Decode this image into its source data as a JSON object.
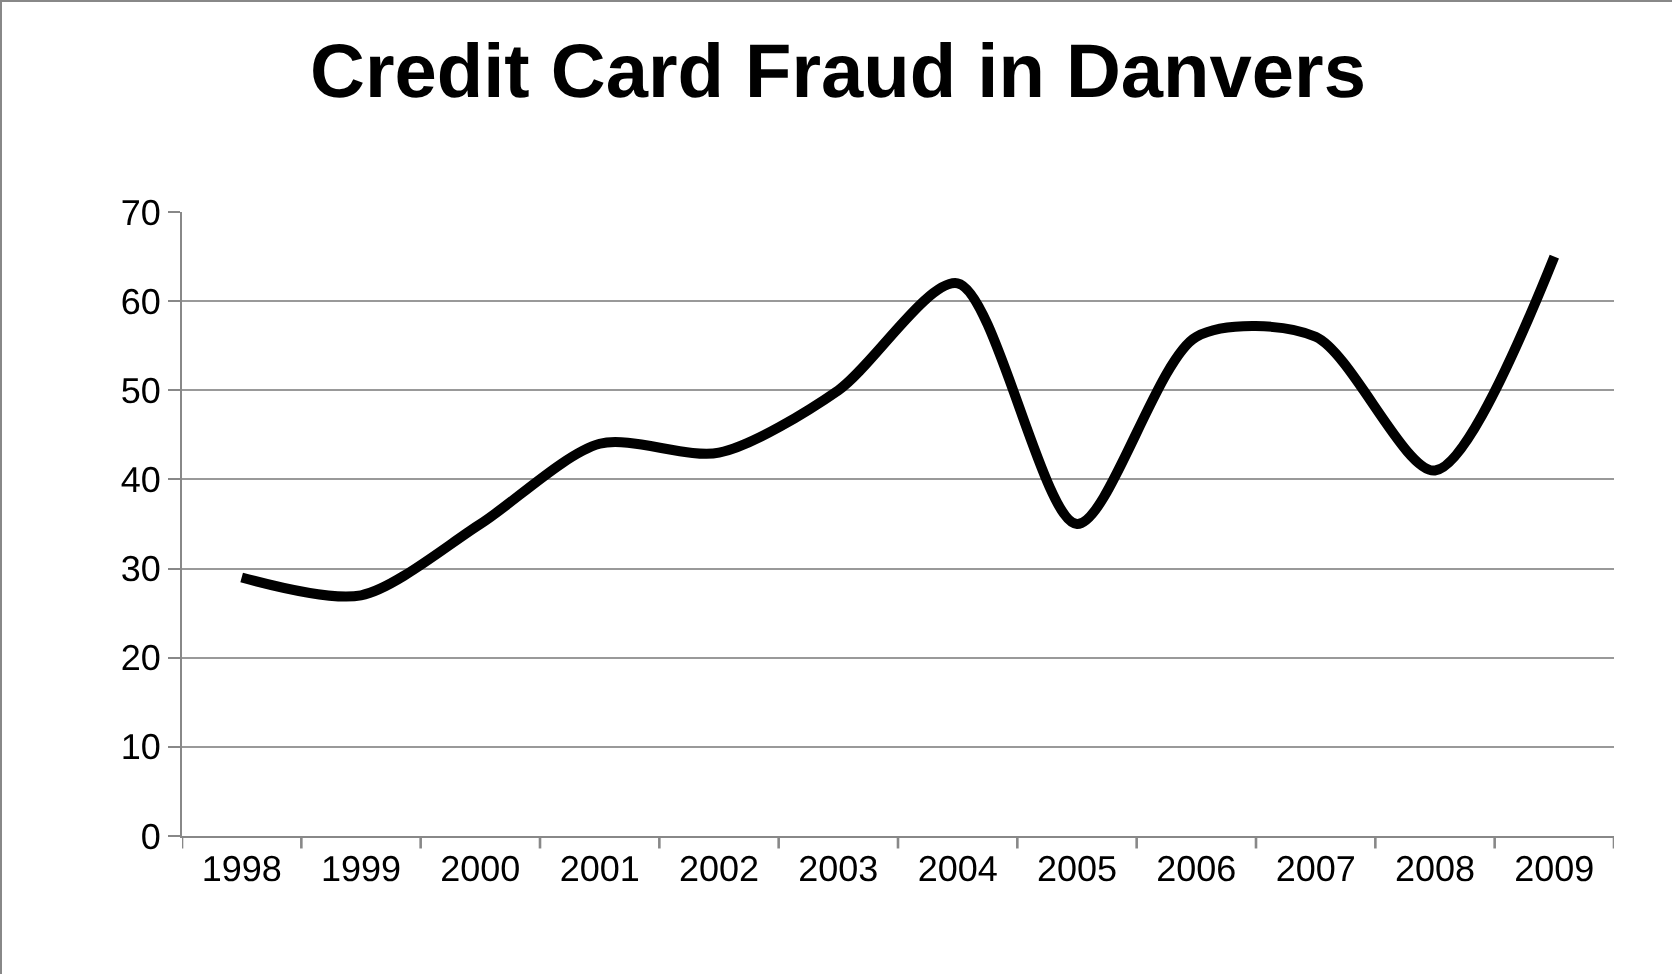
{
  "chart_data": {
    "type": "line",
    "title": "Credit Card Fraud in Danvers",
    "categories": [
      "1998",
      "1999",
      "2000",
      "2001",
      "2002",
      "2003",
      "2004",
      "2005",
      "2006",
      "2007",
      "2008",
      "2009"
    ],
    "series": [
      {
        "color": "#000000",
        "values": [
          29,
          27,
          35,
          44,
          43,
          50,
          62,
          35,
          56,
          56,
          41,
          65
        ]
      }
    ],
    "ylim": [
      0,
      70
    ],
    "yticks": [
      0,
      10,
      20,
      30,
      40,
      50,
      60,
      70
    ],
    "grid": "y",
    "marker": "none",
    "line_style": "solid"
  }
}
